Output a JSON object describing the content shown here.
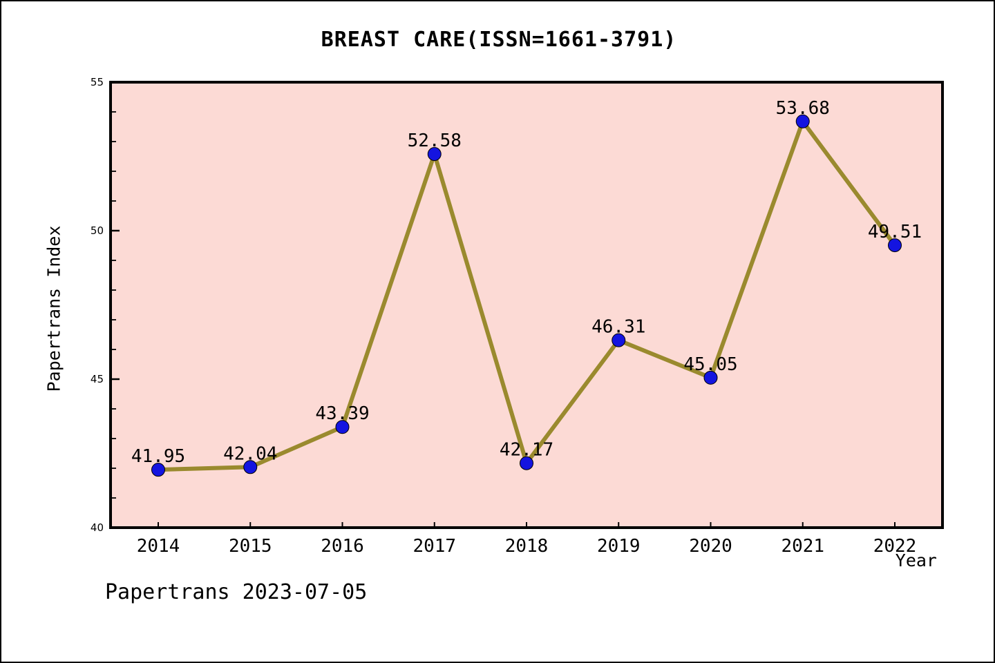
{
  "footer": "Papertrans 2023-07-05",
  "chart_data": {
    "type": "line",
    "title": "BREAST CARE(ISSN=1661-3791)",
    "xlabel": "Year",
    "ylabel": "Papertrans Index",
    "x": [
      2014,
      2015,
      2016,
      2017,
      2018,
      2019,
      2020,
      2021,
      2022
    ],
    "series": [
      {
        "name": "Papertrans Index",
        "values": [
          41.95,
          42.04,
          43.39,
          52.58,
          42.17,
          46.31,
          45.05,
          53.68,
          49.51
        ]
      }
    ],
    "point_labels": [
      "41.95",
      "42.04",
      "43.39",
      "52.58",
      "42.17",
      "46.31",
      "45.05",
      "53.68",
      "49.51"
    ],
    "ylim": [
      40,
      55
    ],
    "yticks": [
      40,
      45,
      50,
      55
    ],
    "minor_ytick_step": 1,
    "grid": false,
    "legend_position": "none",
    "colors": {
      "plot_background": "#fcdad5",
      "line": "#9a8a2e",
      "marker": "#1414e0",
      "marker_edge": "#000000",
      "axis": "#000000",
      "text": "#000000",
      "page_background": "#ffffff"
    }
  }
}
